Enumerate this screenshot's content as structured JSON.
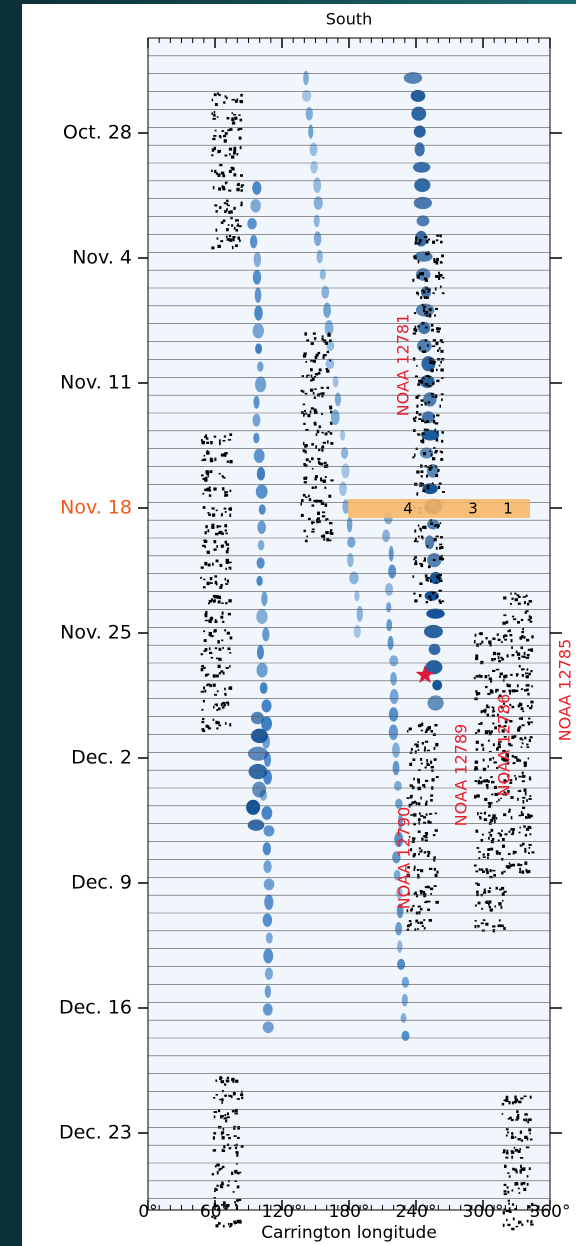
{
  "panel": {
    "title": "South",
    "y_labels": [
      "Oct. 28",
      "Nov. 4",
      "Nov. 11",
      "Nov. 18",
      "Nov. 25",
      "Dec. 2",
      "Dec. 9",
      "Dec. 16",
      "Dec. 23"
    ],
    "x_ticks": [
      "0°",
      "60°",
      "120°",
      "180°",
      "240°",
      "300°",
      "360°"
    ],
    "x_label": "Carrington longitude",
    "annotations": [
      "NOAA 12781",
      "NOAA 12785",
      "NOAA 12786",
      "NOAA 12789",
      "NOAA 12790"
    ],
    "band_labels": [
      "4",
      "3",
      "1"
    ]
  }
}
